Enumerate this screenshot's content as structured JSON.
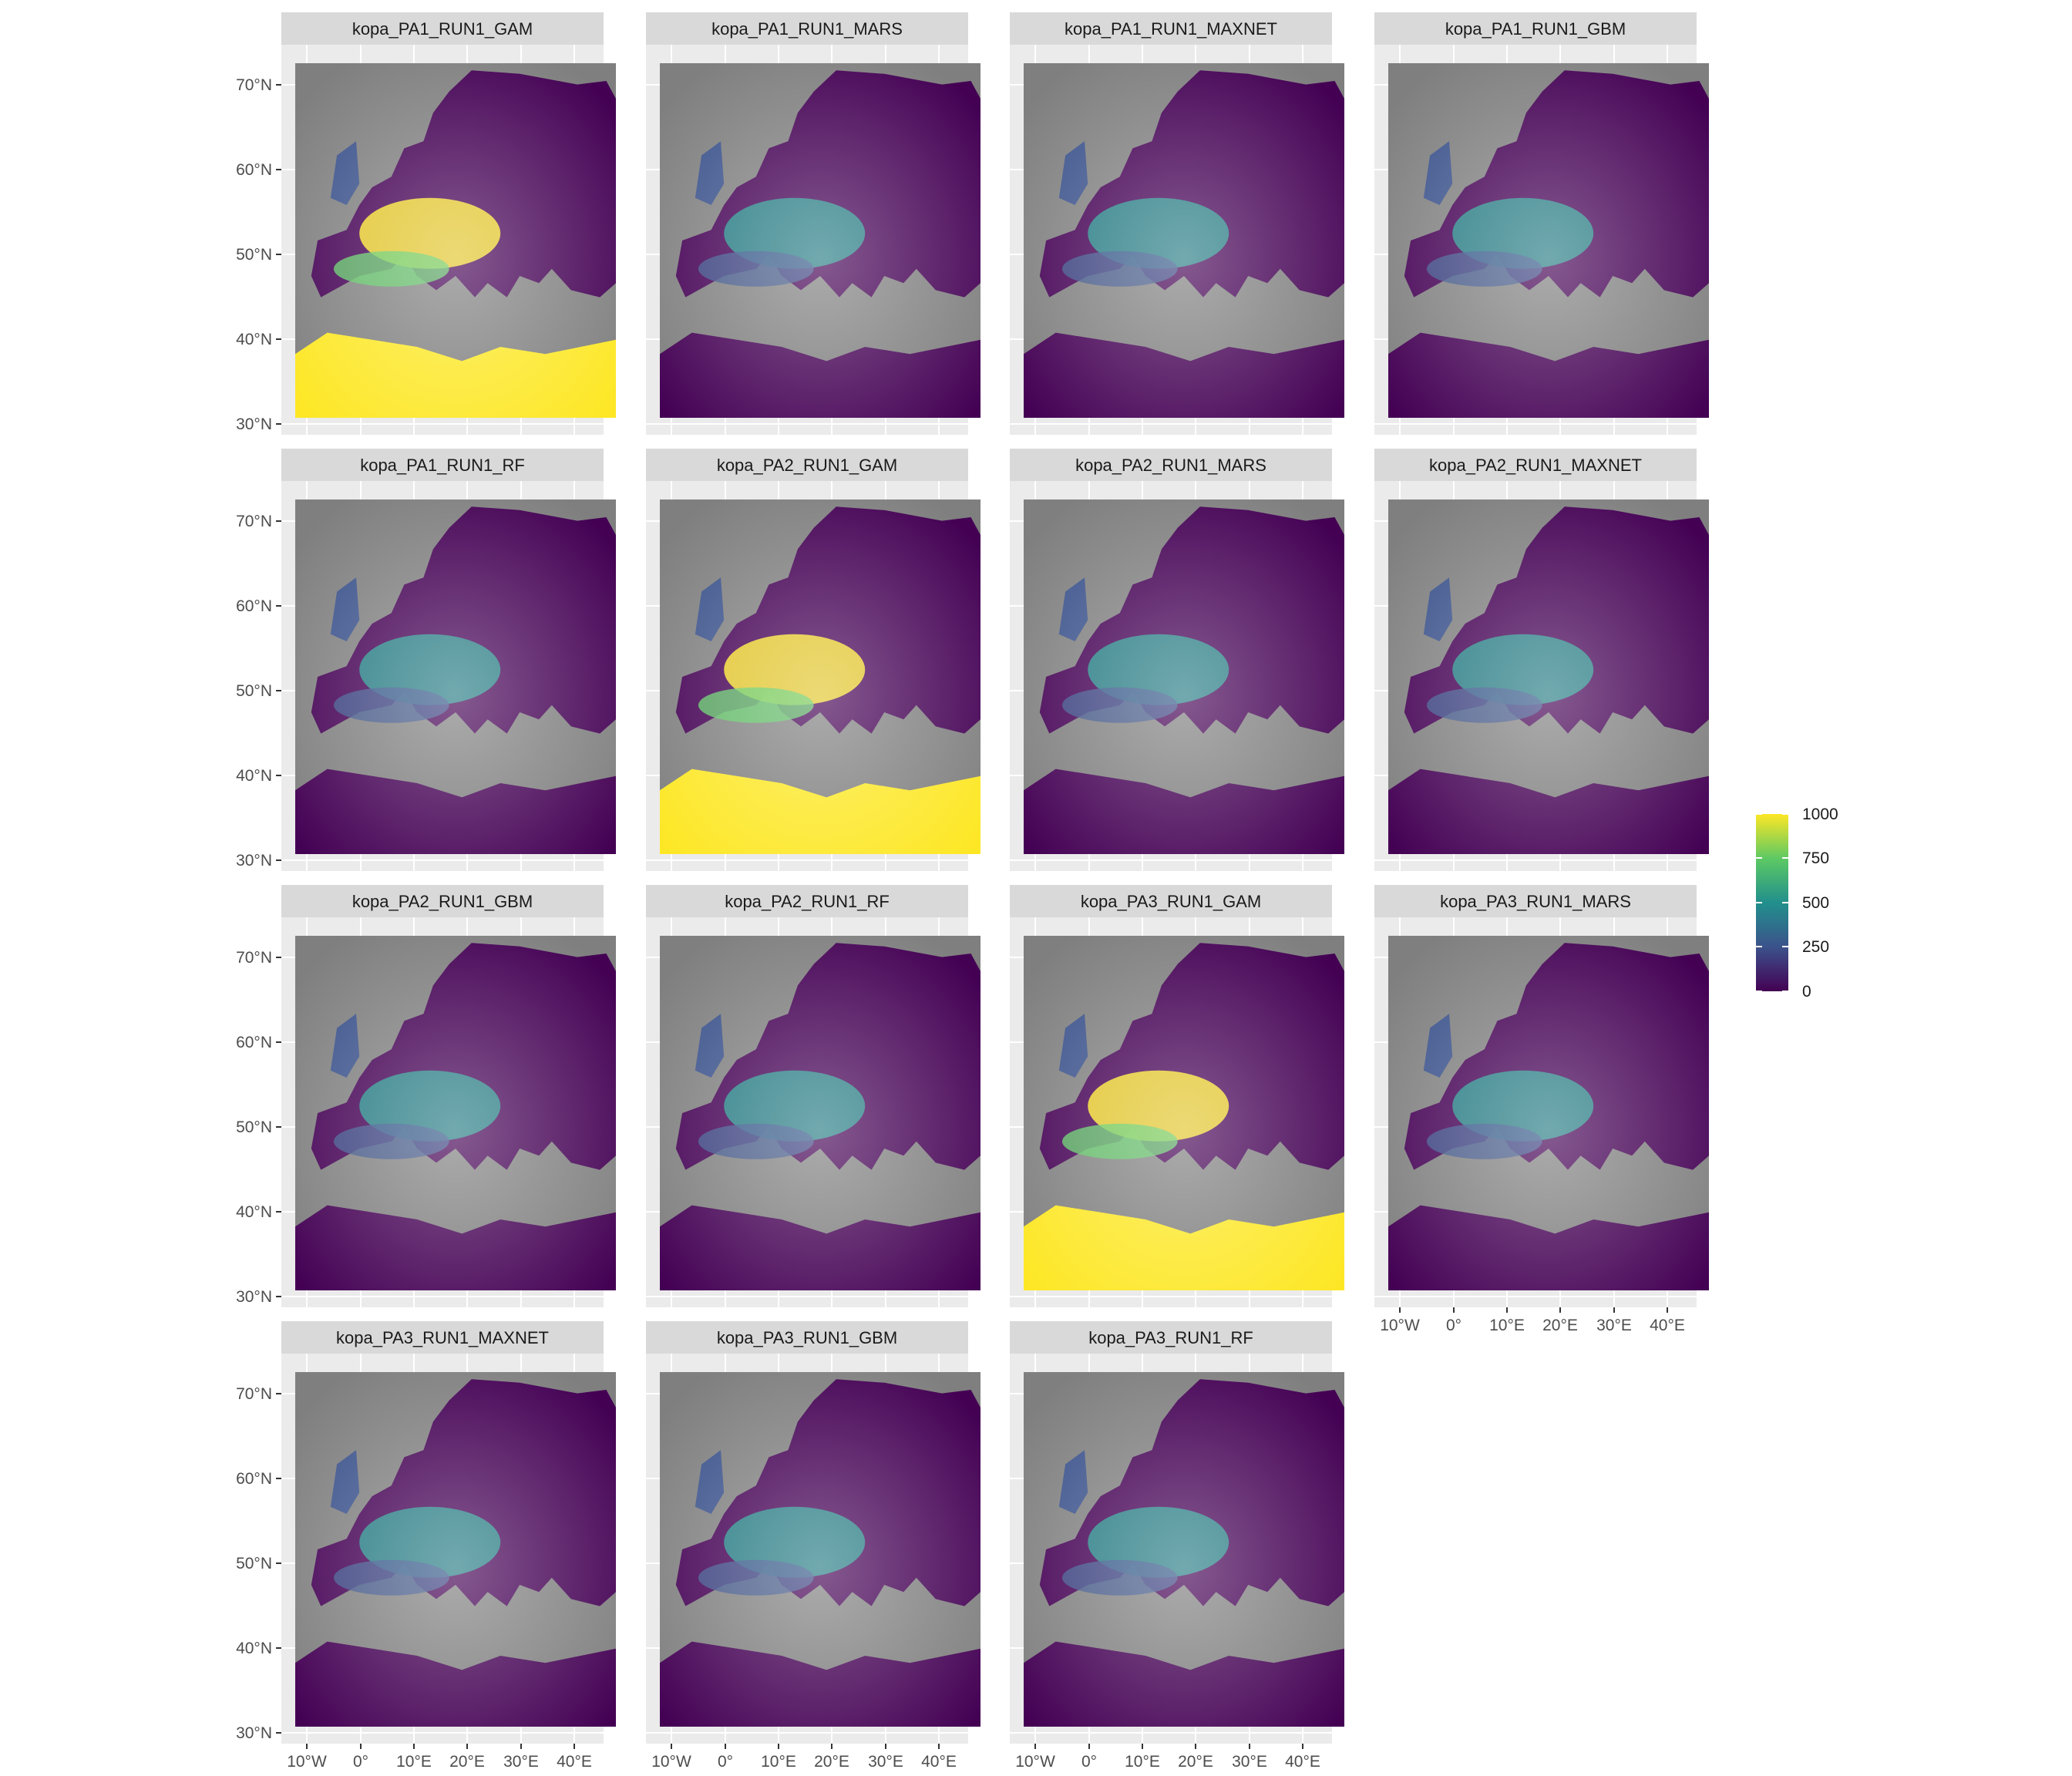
{
  "figure": {
    "panels": [
      {
        "title": "kopa_PA1_RUN1_GAM",
        "level": 0.95
      },
      {
        "title": "kopa_PA1_RUN1_MARS",
        "level": 0.6
      },
      {
        "title": "kopa_PA1_RUN1_MAXNET",
        "level": 0.4
      },
      {
        "title": "kopa_PA1_RUN1_GBM",
        "level": 0.55
      },
      {
        "title": "kopa_PA1_RUN1_RF",
        "level": 0.5
      },
      {
        "title": "kopa_PA2_RUN1_GAM",
        "level": 0.95
      },
      {
        "title": "kopa_PA2_RUN1_MARS",
        "level": 0.6
      },
      {
        "title": "kopa_PA2_RUN1_MAXNET",
        "level": 0.4
      },
      {
        "title": "kopa_PA2_RUN1_GBM",
        "level": 0.55
      },
      {
        "title": "kopa_PA2_RUN1_RF",
        "level": 0.5
      },
      {
        "title": "kopa_PA3_RUN1_GAM",
        "level": 0.95
      },
      {
        "title": "kopa_PA3_RUN1_MARS",
        "level": 0.6
      },
      {
        "title": "kopa_PA3_RUN1_MAXNET",
        "level": 0.4
      },
      {
        "title": "kopa_PA3_RUN1_GBM",
        "level": 0.55
      },
      {
        "title": "kopa_PA3_RUN1_RF",
        "level": 0.5
      }
    ],
    "lat_ticks": [
      "70°N",
      "60°N",
      "50°N",
      "40°N",
      "30°N"
    ],
    "lon_ticks": [
      "10°W",
      "0°",
      "10°E",
      "20°E",
      "30°E",
      "40°E"
    ],
    "legend": {
      "ticks": [
        "1000",
        "750",
        "500",
        "250",
        "0"
      ],
      "colors": [
        "#440154",
        "#3b528b",
        "#21908c",
        "#5dc963",
        "#fde725"
      ]
    },
    "colors": {
      "panel_background": "#ebebeb",
      "strip_background": "#d9d9d9",
      "no_data": "#7f7f7f"
    }
  }
}
